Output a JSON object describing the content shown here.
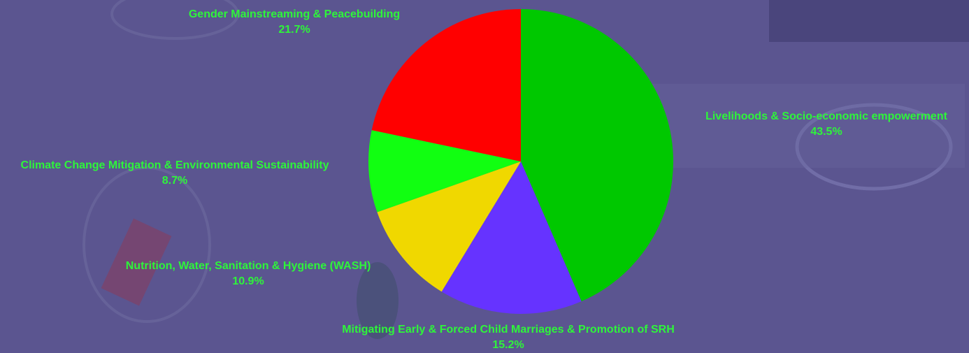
{
  "chart_data": {
    "type": "pie",
    "label_color": "#2ef53a",
    "slices": [
      {
        "label": "Livelihoods & Socio-economic empowerment",
        "value_label": "43.5%",
        "value": 43.5,
        "color": "#00c800"
      },
      {
        "label": "Mitigating Early & Forced Child Marriages & Promotion of SRH",
        "value_label": "15.2%",
        "value": 15.2,
        "color": "#6633ff"
      },
      {
        "label": "Nutrition, Water, Sanitation & Hygiene (WASH)",
        "value_label": "10.9%",
        "value": 10.9,
        "color": "#f0d800"
      },
      {
        "label": "Climate Change Mitigation & Environmental Sustainability",
        "value_label": "8.7%",
        "value": 8.7,
        "color": "#11ff11"
      },
      {
        "label": "Gender Mainstreaming & Peacebuilding",
        "value_label": "21.7%",
        "value": 21.7,
        "color": "#ff0000"
      }
    ]
  }
}
